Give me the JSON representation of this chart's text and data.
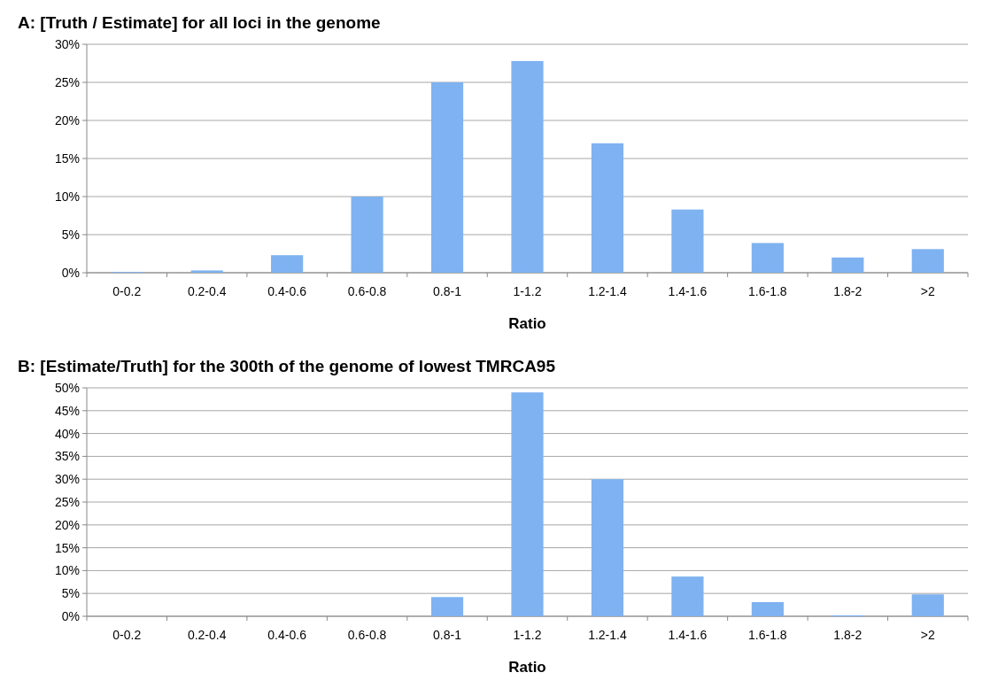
{
  "chart_data": [
    {
      "type": "bar",
      "title": "A: [Truth / Estimate] for all loci in the genome",
      "xlabel": "Ratio",
      "categories": [
        "0-0.2",
        "0.2-0.4",
        "0.4-0.6",
        "0.6-0.8",
        "0.8-1",
        "1-1.2",
        "1.2-1.4",
        "1.4-1.6",
        "1.6-1.8",
        "1.8-2",
        ">2"
      ],
      "values": [
        0.1,
        0.3,
        2.3,
        10,
        25,
        27.8,
        17,
        8.3,
        3.9,
        2,
        3.1
      ],
      "color": "#7fb2f0",
      "ylim": [
        0,
        30
      ],
      "yticks": [
        {
          "value": 0,
          "label": "0%"
        },
        {
          "value": 5,
          "label": "5%"
        },
        {
          "value": 10,
          "label": "10%"
        },
        {
          "value": 15,
          "label": "15%"
        },
        {
          "value": 20,
          "label": "20%"
        },
        {
          "value": 25,
          "label": "25%"
        },
        {
          "value": 30,
          "label": "30%"
        }
      ],
      "grid": "y"
    },
    {
      "type": "bar",
      "title": "B: [Estimate/Truth] for the 300th of the genome of lowest TMRCA95",
      "xlabel": "Ratio",
      "categories": [
        "0-0.2",
        "0.2-0.4",
        "0.4-0.6",
        "0.6-0.8",
        "0.8-1",
        "1-1.2",
        "1.2-1.4",
        "1.4-1.6",
        "1.6-1.8",
        "1.8-2",
        ">2"
      ],
      "values": [
        0,
        0,
        0,
        0,
        4.2,
        49,
        30,
        8.7,
        3.1,
        0.2,
        4.8
      ],
      "color": "#7fb2f0",
      "ylim": [
        0,
        50
      ],
      "yticks": [
        {
          "value": 0,
          "label": "0%"
        },
        {
          "value": 5,
          "label": "5%"
        },
        {
          "value": 10,
          "label": "10%"
        },
        {
          "value": 15,
          "label": "15%"
        },
        {
          "value": 20,
          "label": "20%"
        },
        {
          "value": 25,
          "label": "25%"
        },
        {
          "value": 30,
          "label": "30%"
        },
        {
          "value": 35,
          "label": "35%"
        },
        {
          "value": 40,
          "label": "40%"
        },
        {
          "value": 45,
          "label": "45%"
        },
        {
          "value": 50,
          "label": "50%"
        }
      ],
      "grid": "y"
    }
  ]
}
